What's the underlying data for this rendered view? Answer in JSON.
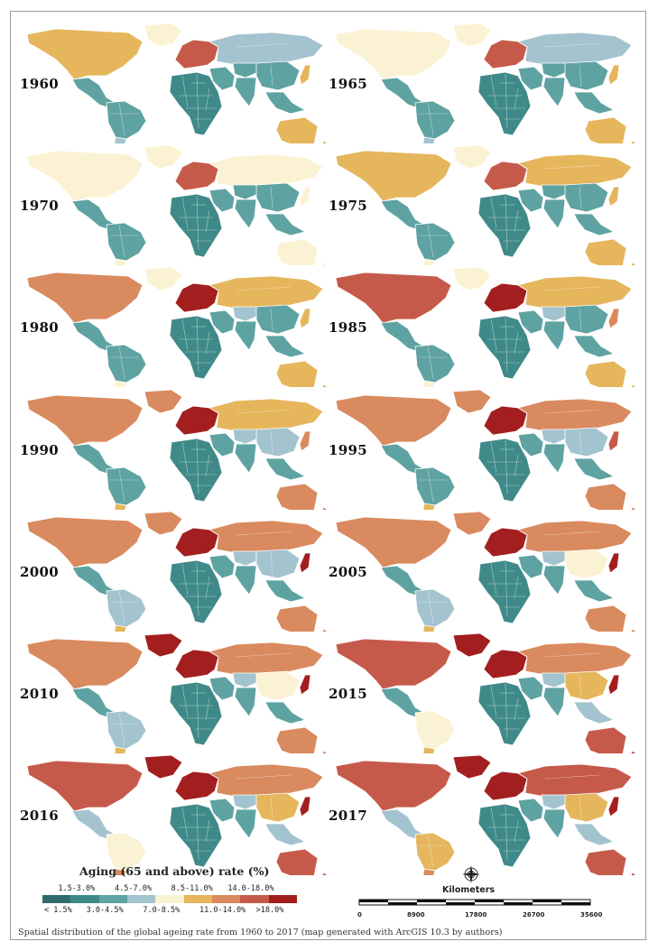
{
  "figure": {
    "caption": "Spatial distribution of the global ageing rate from 1960 to 2017 (map generated with ArcGIS 10.3 by authors)"
  },
  "legend": {
    "title": "Aging (65 and above) rate (%)",
    "classes": [
      {
        "label": "< 1.5%",
        "color": "#2f6b6e"
      },
      {
        "label": "1.5-3.0%",
        "color": "#3f8a89"
      },
      {
        "label": "3.0-4.5%",
        "color": "#5ea3a2"
      },
      {
        "label": "4.5-7.0%",
        "color": "#a3c3cf"
      },
      {
        "label": "7.0-8.5%",
        "color": "#fbf2d3"
      },
      {
        "label": "8.5-11.0%",
        "color": "#e5b65c"
      },
      {
        "label": "11.0-14.0%",
        "color": "#d98a5f"
      },
      {
        "label": "14.0-18.0%",
        "color": "#c65a4a"
      },
      {
        "label": ">18.0%",
        "color": "#a31f1f"
      }
    ]
  },
  "scale_bar": {
    "title": "Kilometers",
    "ticks": [
      "0",
      "8900",
      "17800",
      "26700",
      "35600"
    ]
  },
  "north_arrow": {
    "icon": "compass-rose-icon"
  },
  "maps": [
    {
      "year": "1960",
      "classes": {
        "northAmerica": 5,
        "centralAmerica": 2,
        "southAmerica": 2,
        "southCone": 3,
        "europe": 7,
        "russia": 3,
        "middleEast": 2,
        "africa": 1,
        "centralAsia": 2,
        "china": 2,
        "india": 2,
        "japan": 5,
        "seAsia": 2,
        "australia": 5,
        "greenland": 4
      }
    },
    {
      "year": "1965",
      "classes": {
        "northAmerica": 4,
        "centralAmerica": 2,
        "southAmerica": 2,
        "southCone": 3,
        "europe": 7,
        "russia": 3,
        "middleEast": 2,
        "africa": 1,
        "centralAsia": 2,
        "china": 2,
        "india": 2,
        "japan": 5,
        "seAsia": 2,
        "australia": 5,
        "greenland": 4
      }
    },
    {
      "year": "1970",
      "classes": {
        "northAmerica": 4,
        "centralAmerica": 2,
        "southAmerica": 2,
        "southCone": 4,
        "europe": 7,
        "russia": 4,
        "middleEast": 2,
        "africa": 1,
        "centralAsia": 2,
        "china": 2,
        "india": 2,
        "japan": 4,
        "seAsia": 2,
        "australia": 4,
        "greenland": 4
      }
    },
    {
      "year": "1975",
      "classes": {
        "northAmerica": 5,
        "centralAmerica": 2,
        "southAmerica": 2,
        "southCone": 4,
        "europe": 7,
        "russia": 5,
        "middleEast": 2,
        "africa": 1,
        "centralAsia": 2,
        "china": 2,
        "india": 2,
        "japan": 5,
        "seAsia": 2,
        "australia": 5,
        "greenland": 4
      }
    },
    {
      "year": "1980",
      "classes": {
        "northAmerica": 6,
        "centralAmerica": 2,
        "southAmerica": 2,
        "southCone": 4,
        "europe": 8,
        "russia": 5,
        "middleEast": 2,
        "africa": 1,
        "centralAsia": 3,
        "china": 2,
        "india": 2,
        "japan": 5,
        "seAsia": 2,
        "australia": 5,
        "greenland": 4
      }
    },
    {
      "year": "1985",
      "classes": {
        "northAmerica": 7,
        "centralAmerica": 2,
        "southAmerica": 2,
        "southCone": 4,
        "europe": 8,
        "russia": 5,
        "middleEast": 2,
        "africa": 1,
        "centralAsia": 3,
        "china": 2,
        "india": 2,
        "japan": 6,
        "seAsia": 2,
        "australia": 5,
        "greenland": 4
      }
    },
    {
      "year": "1990",
      "classes": {
        "northAmerica": 6,
        "centralAmerica": 2,
        "southAmerica": 2,
        "southCone": 5,
        "europe": 8,
        "russia": 5,
        "middleEast": 2,
        "africa": 1,
        "centralAsia": 3,
        "china": 3,
        "india": 2,
        "japan": 6,
        "seAsia": 2,
        "australia": 6,
        "greenland": 6
      }
    },
    {
      "year": "1995",
      "classes": {
        "northAmerica": 6,
        "centralAmerica": 2,
        "southAmerica": 2,
        "southCone": 5,
        "europe": 8,
        "russia": 6,
        "middleEast": 2,
        "africa": 1,
        "centralAsia": 3,
        "china": 3,
        "india": 2,
        "japan": 7,
        "seAsia": 2,
        "australia": 6,
        "greenland": 6
      }
    },
    {
      "year": "2000",
      "classes": {
        "northAmerica": 6,
        "centralAmerica": 2,
        "southAmerica": 3,
        "southCone": 5,
        "europe": 8,
        "russia": 6,
        "middleEast": 2,
        "africa": 1,
        "centralAsia": 3,
        "china": 3,
        "india": 2,
        "japan": 8,
        "seAsia": 2,
        "australia": 6,
        "greenland": 6
      }
    },
    {
      "year": "2005",
      "classes": {
        "northAmerica": 6,
        "centralAmerica": 2,
        "southAmerica": 3,
        "southCone": 5,
        "europe": 8,
        "russia": 6,
        "middleEast": 2,
        "africa": 1,
        "centralAsia": 3,
        "china": 4,
        "india": 2,
        "japan": 8,
        "seAsia": 2,
        "australia": 6,
        "greenland": 6
      }
    },
    {
      "year": "2010",
      "classes": {
        "northAmerica": 6,
        "centralAmerica": 2,
        "southAmerica": 3,
        "southCone": 5,
        "europe": 8,
        "russia": 6,
        "middleEast": 2,
        "africa": 1,
        "centralAsia": 3,
        "china": 4,
        "india": 2,
        "japan": 8,
        "seAsia": 2,
        "australia": 6,
        "greenland": 8
      }
    },
    {
      "year": "2015",
      "classes": {
        "northAmerica": 7,
        "centralAmerica": 2,
        "southAmerica": 4,
        "southCone": 5,
        "europe": 8,
        "russia": 6,
        "middleEast": 2,
        "africa": 1,
        "centralAsia": 3,
        "china": 5,
        "india": 2,
        "japan": 8,
        "seAsia": 3,
        "australia": 7,
        "greenland": 8
      }
    },
    {
      "year": "2016",
      "classes": {
        "northAmerica": 7,
        "centralAmerica": 3,
        "southAmerica": 4,
        "southCone": 6,
        "europe": 8,
        "russia": 6,
        "middleEast": 2,
        "africa": 1,
        "centralAsia": 3,
        "china": 5,
        "india": 2,
        "japan": 8,
        "seAsia": 3,
        "australia": 7,
        "greenland": 8
      }
    },
    {
      "year": "2017",
      "classes": {
        "northAmerica": 7,
        "centralAmerica": 3,
        "southAmerica": 5,
        "southCone": 6,
        "europe": 8,
        "russia": 7,
        "middleEast": 2,
        "africa": 1,
        "centralAsia": 3,
        "china": 5,
        "india": 2,
        "japan": 8,
        "seAsia": 3,
        "australia": 7,
        "greenland": 8
      }
    }
  ]
}
